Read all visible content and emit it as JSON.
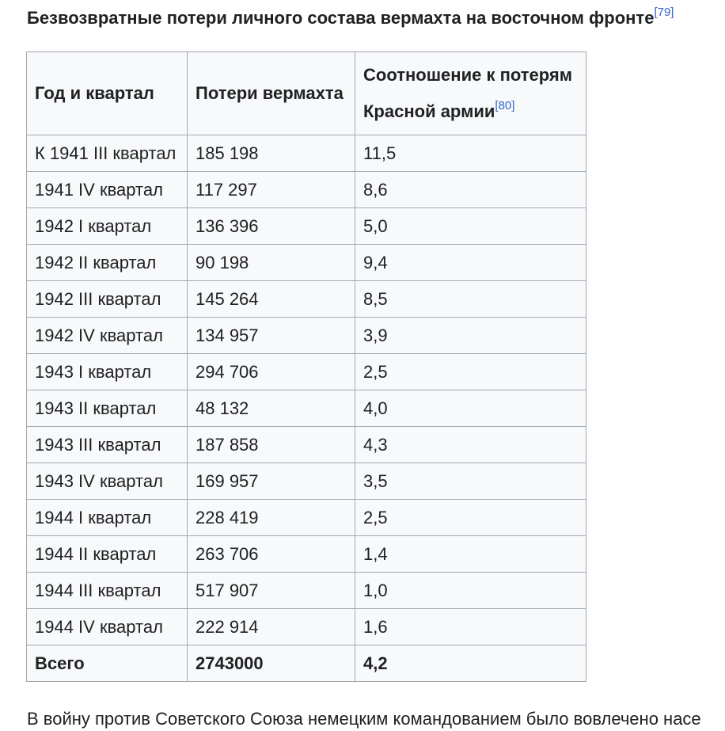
{
  "caption": {
    "text": "Безвозвратные потери личного состава вермахта на восточном фронте",
    "ref": "[79]"
  },
  "table": {
    "headers": {
      "year_quarter": "Год и квартал",
      "wehrmacht_losses": "Потери вермахта",
      "ratio_line1": "Соотношение к потерям",
      "ratio_line2": "Красной армии",
      "ratio_ref": "[80]"
    },
    "rows": [
      {
        "period": "К 1941 III квартал",
        "losses": "185 198",
        "ratio": "11,5"
      },
      {
        "period": "1941 IV квартал",
        "losses": "117 297",
        "ratio": "8,6"
      },
      {
        "period": "1942 I квартал",
        "losses": "136 396",
        "ratio": "5,0"
      },
      {
        "period": "1942 II квартал",
        "losses": "90 198",
        "ratio": "9,4"
      },
      {
        "period": "1942 III квартал",
        "losses": "145 264",
        "ratio": "8,5"
      },
      {
        "period": "1942 IV квартал",
        "losses": "134 957",
        "ratio": "3,9"
      },
      {
        "period": "1943 I квартал",
        "losses": "294 706",
        "ratio": "2,5"
      },
      {
        "period": "1943 II квартал",
        "losses": "48 132",
        "ratio": "4,0"
      },
      {
        "period": "1943 III квартал",
        "losses": "187 858",
        "ratio": "4,3"
      },
      {
        "period": "1943 IV квартал",
        "losses": "169 957",
        "ratio": "3,5"
      },
      {
        "period": "1944 I квартал",
        "losses": "228 419",
        "ratio": "2,5"
      },
      {
        "period": "1944 II квартал",
        "losses": "263 706",
        "ratio": "1,4"
      },
      {
        "period": "1944 III квартал",
        "losses": "517 907",
        "ratio": "1,0"
      },
      {
        "period": "1944 IV квартал",
        "losses": "222 914",
        "ratio": "1,6"
      }
    ],
    "total": {
      "label": "Всего",
      "losses": "2743000",
      "ratio": "4,2"
    }
  },
  "following_text": "В войну против Советского Союза немецким командованием было вовлечено насе"
}
